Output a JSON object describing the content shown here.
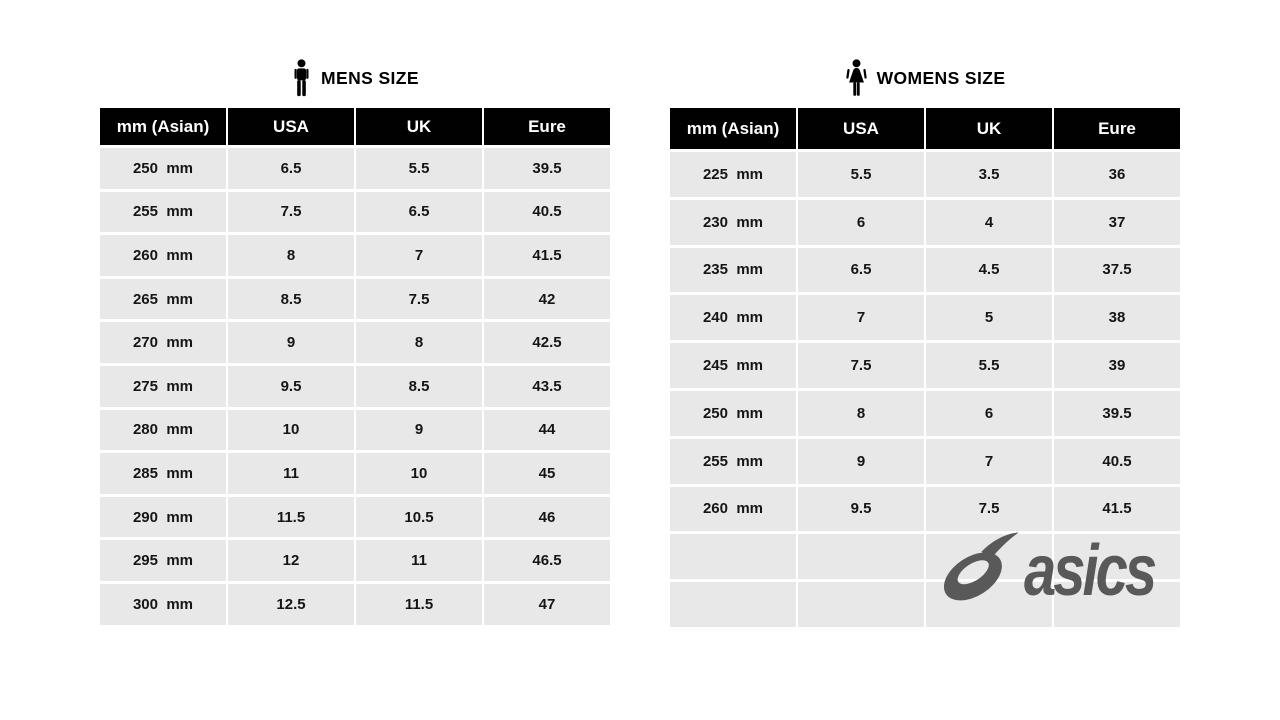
{
  "brand": {
    "logo_text": "asics",
    "logo_color": "#595959"
  },
  "colors": {
    "header_bg": "#010101",
    "header_text": "#ffffff",
    "cell_bg": "#e8e8e8",
    "cell_text": "#151515",
    "page_bg": "#ffffff"
  },
  "chart_data": [
    {
      "type": "table",
      "title": "MENS SIZE",
      "icon": "man-icon",
      "columns": [
        "mm (Asian)",
        "USA",
        "UK",
        "Eure"
      ],
      "rows": [
        [
          "250  mm",
          "6.5",
          "5.5",
          "39.5"
        ],
        [
          "255  mm",
          "7.5",
          "6.5",
          "40.5"
        ],
        [
          "260  mm",
          "8",
          "7",
          "41.5"
        ],
        [
          "265  mm",
          "8.5",
          "7.5",
          "42"
        ],
        [
          "270  mm",
          "9",
          "8",
          "42.5"
        ],
        [
          "275  mm",
          "9.5",
          "8.5",
          "43.5"
        ],
        [
          "280  mm",
          "10",
          "9",
          "44"
        ],
        [
          "285  mm",
          "11",
          "10",
          "45"
        ],
        [
          "290  mm",
          "11.5",
          "10.5",
          "46"
        ],
        [
          "295  mm",
          "12",
          "11",
          "46.5"
        ],
        [
          "300  mm",
          "12.5",
          "11.5",
          "47"
        ]
      ],
      "empty_rows": 0
    },
    {
      "type": "table",
      "title": "WOMENS SIZE",
      "icon": "woman-icon",
      "columns": [
        "mm (Asian)",
        "USA",
        "UK",
        "Eure"
      ],
      "rows": [
        [
          "225  mm",
          "5.5",
          "3.5",
          "36"
        ],
        [
          "230  mm",
          "6",
          "4",
          "37"
        ],
        [
          "235  mm",
          "6.5",
          "4.5",
          "37.5"
        ],
        [
          "240  mm",
          "7",
          "5",
          "38"
        ],
        [
          "245  mm",
          "7.5",
          "5.5",
          "39"
        ],
        [
          "250  mm",
          "8",
          "6",
          "39.5"
        ],
        [
          "255  mm",
          "9",
          "7",
          "40.5"
        ],
        [
          "260  mm",
          "9.5",
          "7.5",
          "41.5"
        ]
      ],
      "empty_rows": 2
    }
  ]
}
